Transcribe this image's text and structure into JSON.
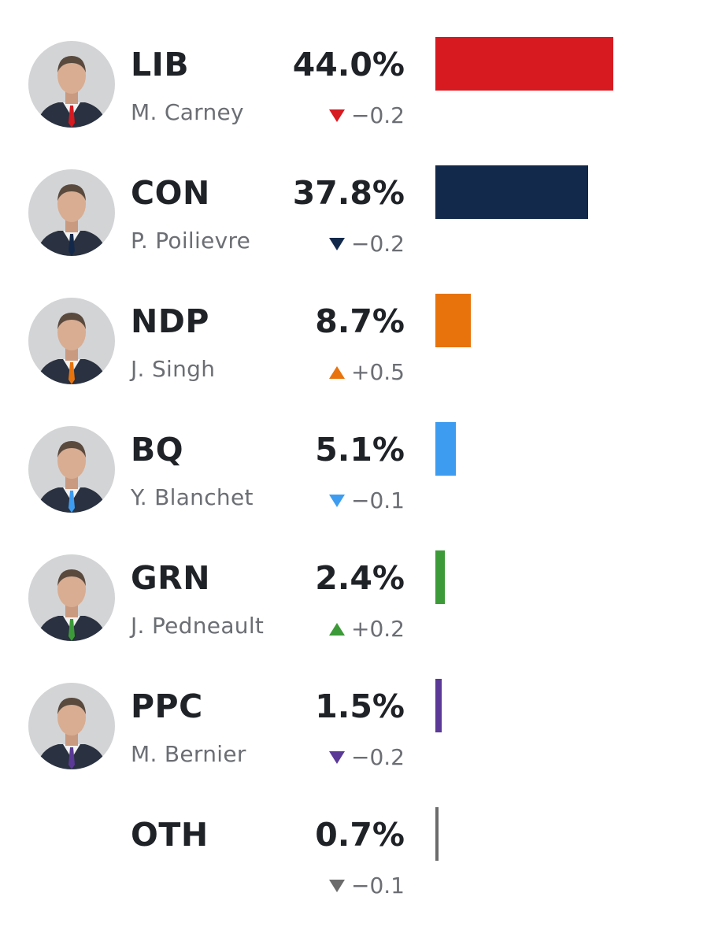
{
  "chart_data": {
    "type": "bar",
    "orientation": "horizontal",
    "categories": [
      "LIB",
      "CON",
      "NDP",
      "BQ",
      "GRN",
      "PPC",
      "OTH"
    ],
    "leaders": [
      "M. Carney",
      "P. Poilievre",
      "J. Singh",
      "Y. Blanchet",
      "J. Pedneault",
      "M. Bernier",
      ""
    ],
    "values": [
      44.0,
      37.8,
      8.7,
      5.1,
      2.4,
      1.5,
      0.7
    ],
    "value_labels": [
      "44.0%",
      "37.8%",
      "8.7%",
      "5.1%",
      "2.4%",
      "1.5%",
      "0.7%"
    ],
    "changes": [
      -0.2,
      -0.2,
      0.5,
      -0.1,
      0.2,
      -0.2,
      -0.1
    ],
    "change_labels": [
      "−0.2",
      "−0.2",
      "+0.5",
      "−0.1",
      "+0.2",
      "−0.2",
      "−0.1"
    ],
    "colors": [
      "#d71920",
      "#13294b",
      "#e8730c",
      "#3d9cf0",
      "#3d9a38",
      "#5a3a96",
      "#6b6b6b"
    ],
    "has_photo": [
      true,
      true,
      true,
      true,
      true,
      true,
      false
    ],
    "xlim": [
      0,
      50
    ],
    "grid": false,
    "title": "",
    "xlabel": "",
    "ylabel": ""
  }
}
